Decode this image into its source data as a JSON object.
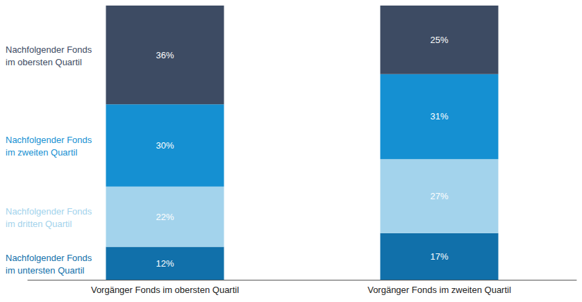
{
  "chart_data": {
    "type": "bar",
    "stacked": true,
    "data_labels": true,
    "legend": "left",
    "tick_labels": "x",
    "grid": false,
    "categories": [
      "Vorgänger Fonds im obersten Quartil",
      "Vorgänger Fonds im zweiten Quartil"
    ],
    "ylim": [
      0,
      100
    ],
    "series": [
      {
        "name": "Nachfolgender Fonds im untersten Quartil",
        "color": "#1170aa",
        "values": [
          12,
          17
        ],
        "value_labels": [
          "12%",
          "17%"
        ]
      },
      {
        "name": "Nachfolgender Fonds im dritten Quartil",
        "color": "#a3d3ec",
        "values": [
          22,
          27
        ],
        "value_labels": [
          "22%",
          "27%"
        ]
      },
      {
        "name": "Nachfolgender Fonds im zweiten Quartil",
        "color": "#1590d2",
        "values": [
          30,
          31
        ],
        "value_labels": [
          "30%",
          "31%"
        ]
      },
      {
        "name": "Nachfolgender Fonds im obersten Quartil",
        "color": "#3d4b63",
        "values": [
          36,
          25
        ],
        "value_labels": [
          "36%",
          "25%"
        ]
      }
    ]
  }
}
